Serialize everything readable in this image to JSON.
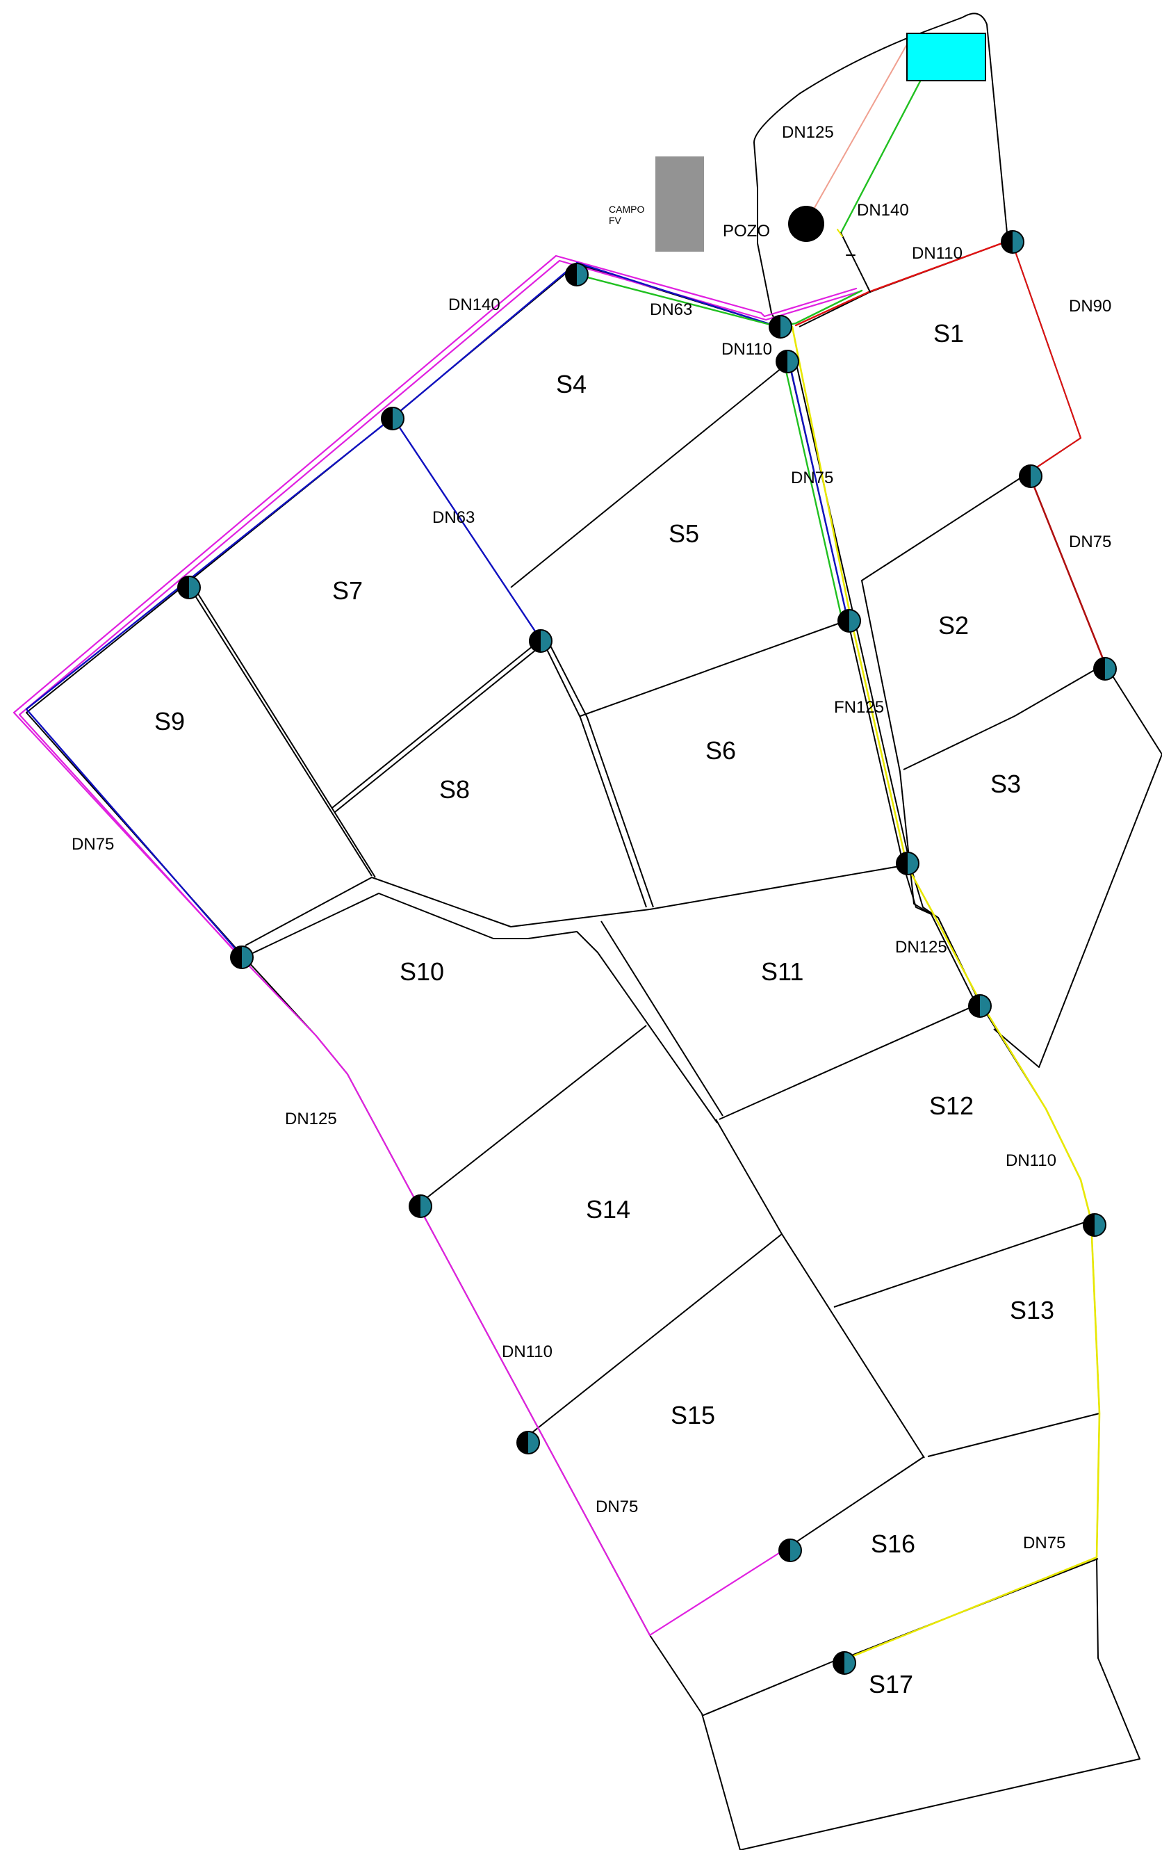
{
  "colors": {
    "boundary": "#000000",
    "tank": "#00ffff",
    "campo": "#939393",
    "pozo": "#000000",
    "hydrant_fill": "#1e7f91",
    "pipe_magenta": "#e020e0",
    "pipe_blue": "#1010c0",
    "pipe_green": "#20c020",
    "pipe_yellow": "#e8e800",
    "pipe_red": "#e01010",
    "pipe_salmon": "#f0a090"
  },
  "icons": {
    "hydrant": "half-black-half-teal-circle",
    "pozo": "black-filled-circle",
    "tank": "cyan-rectangle",
    "campo": "grey-rectangle"
  },
  "features": {
    "campo_label_line1": "CAMPO",
    "campo_label_line2": "FV",
    "pozo_label": "POZO"
  },
  "sectors": [
    "S1",
    "S2",
    "S3",
    "S4",
    "S5",
    "S6",
    "S7",
    "S8",
    "S9",
    "S10",
    "S11",
    "S12",
    "S13",
    "S14",
    "S15",
    "S16",
    "S17"
  ],
  "pipe_labels": [
    "DN125",
    "DN140",
    "DN110",
    "DN90",
    "DN140",
    "DN63",
    "DN110",
    "DN75",
    "DN75",
    "DN63",
    "FN125",
    "DN75",
    "DN125",
    "DN110",
    "DN125",
    "DN110",
    "DN75",
    "DN75"
  ]
}
